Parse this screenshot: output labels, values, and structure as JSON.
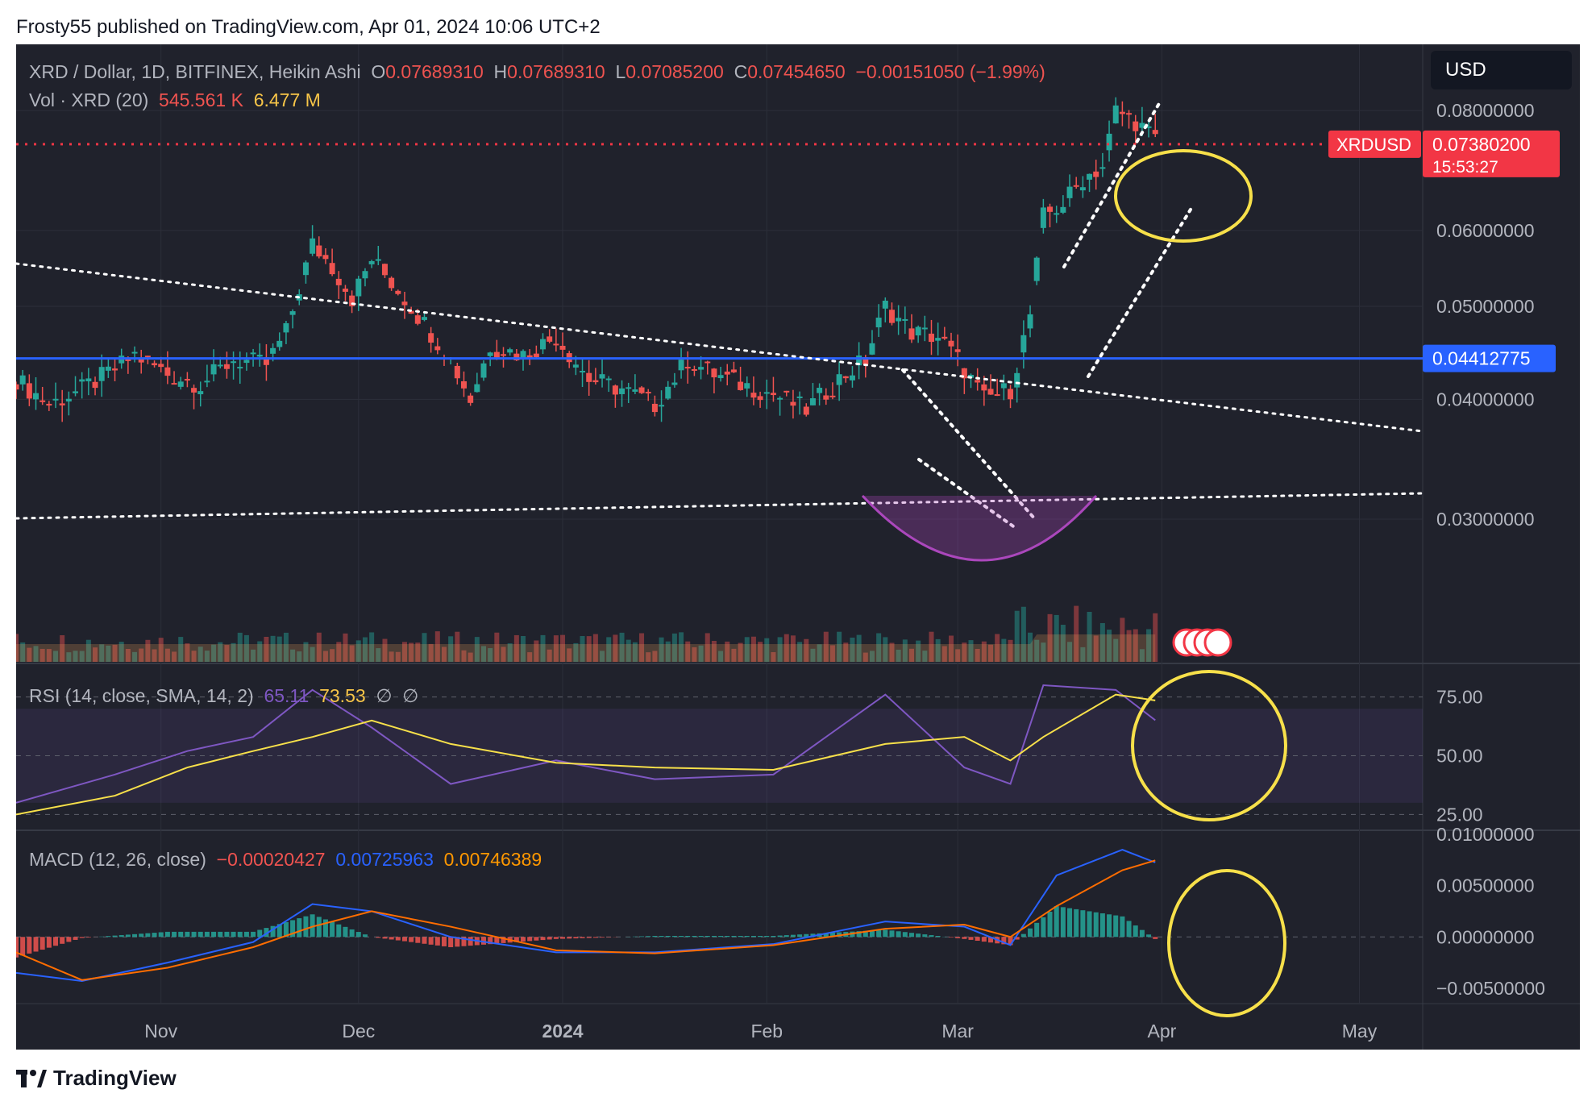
{
  "header": {
    "publish_text": "Frosty55 published on TradingView.com, Apr 01, 2024 10:06 UTC+2"
  },
  "footer": {
    "brand": "TradingView",
    "logo_icon": "tradingview-logo-icon"
  },
  "toolbar": {
    "currency": "USD"
  },
  "legend": {
    "symbol": "XRD / Dollar, 1D, BITFINEX, Heikin Ashi",
    "o_label": "O",
    "o_value": "0.07689310",
    "h_label": "H",
    "h_value": "0.07689310",
    "l_label": "L",
    "l_value": "0.07085200",
    "c_label": "C",
    "c_value": "0.07454650",
    "change": "−0.00151050 (−1.99%)",
    "vol_label": "Vol · XRD (20)",
    "vol_value": "545.561 K",
    "vol_ma": "6.477 M",
    "rsi_label": "RSI (14, close, SMA, 14, 2)",
    "rsi_value": "65.11",
    "rsi_ma": "73.53",
    "rsi_extra1": "∅",
    "rsi_extra2": "∅",
    "macd_label": "MACD (12, 26, close)",
    "macd_hist": "−0.00020427",
    "macd_line": "0.00725963",
    "macd_signal": "0.00746389"
  },
  "price_badges": {
    "symbol_tag": "XRDUSD",
    "last_price": "0.07380200",
    "countdown": "15:53:27",
    "level_price": "0.04412775"
  },
  "colors": {
    "background": "#20222c",
    "up": "#26a69a",
    "down": "#ef5350",
    "level_line": "#2962ff",
    "price_line": "#f23645",
    "rsi": "#7e57c2",
    "rsi_ma": "#f7e04a",
    "macd": "#2962ff",
    "signal": "#ff6d00",
    "annotation": "#f7e04a",
    "cup": "#ab47bc"
  },
  "chart_data": [
    {
      "type": "candlestick",
      "panel": "price",
      "style": "Heikin Ashi",
      "x_ticks": [
        "Nov",
        "Dec",
        "2024",
        "Feb",
        "Mar",
        "Apr",
        "May"
      ],
      "y_ticks": [
        "0.08000000",
        "0.06000000",
        "0.05000000",
        "0.04000000",
        "0.03000000"
      ],
      "y_tick_values": [
        0.08,
        0.06,
        0.05,
        0.04,
        0.03
      ],
      "ylim": [
        0.0213,
        0.0885
      ],
      "log_scale": true,
      "x_range": [
        "2023-10-10",
        "2024-05-10"
      ],
      "series": [
        {
          "x": "2023-10-10",
          "close": 0.042
        },
        {
          "x": "2023-10-15",
          "close": 0.0395
        },
        {
          "x": "2023-10-20",
          "close": 0.041
        },
        {
          "x": "2023-10-25",
          "close": 0.043
        },
        {
          "x": "2023-10-28",
          "close": 0.0445
        },
        {
          "x": "2023-11-02",
          "close": 0.0425
        },
        {
          "x": "2023-11-07",
          "close": 0.0415
        },
        {
          "x": "2023-11-12",
          "close": 0.044
        },
        {
          "x": "2023-11-17",
          "close": 0.0435
        },
        {
          "x": "2023-11-20",
          "close": 0.047
        },
        {
          "x": "2023-11-24",
          "close": 0.058
        },
        {
          "x": "2023-11-27",
          "close": 0.055
        },
        {
          "x": "2023-11-30",
          "close": 0.051
        },
        {
          "x": "2023-12-03",
          "close": 0.056
        },
        {
          "x": "2023-12-07",
          "close": 0.052
        },
        {
          "x": "2023-12-11",
          "close": 0.048
        },
        {
          "x": "2023-12-15",
          "close": 0.044
        },
        {
          "x": "2023-12-18",
          "close": 0.04
        },
        {
          "x": "2023-12-21",
          "close": 0.0455
        },
        {
          "x": "2023-12-26",
          "close": 0.0445
        },
        {
          "x": "2023-12-31",
          "close": 0.0465
        },
        {
          "x": "2024-01-05",
          "close": 0.042
        },
        {
          "x": "2024-01-10",
          "close": 0.041
        },
        {
          "x": "2024-01-15",
          "close": 0.0395
        },
        {
          "x": "2024-01-20",
          "close": 0.044
        },
        {
          "x": "2024-01-24",
          "close": 0.0425
        },
        {
          "x": "2024-01-28",
          "close": 0.0415
        },
        {
          "x": "2024-02-02",
          "close": 0.0405
        },
        {
          "x": "2024-02-07",
          "close": 0.039
        },
        {
          "x": "2024-02-12",
          "close": 0.042
        },
        {
          "x": "2024-02-16",
          "close": 0.044
        },
        {
          "x": "2024-02-19",
          "close": 0.05
        },
        {
          "x": "2024-02-23",
          "close": 0.047
        },
        {
          "x": "2024-02-27",
          "close": 0.0465
        },
        {
          "x": "2024-03-01",
          "close": 0.044
        },
        {
          "x": "2024-03-05",
          "close": 0.04
        },
        {
          "x": "2024-03-09",
          "close": 0.041
        },
        {
          "x": "2024-03-12",
          "close": 0.049
        },
        {
          "x": "2024-03-14",
          "close": 0.062
        },
        {
          "x": "2024-03-17",
          "close": 0.064
        },
        {
          "x": "2024-03-20",
          "close": 0.068
        },
        {
          "x": "2024-03-23",
          "close": 0.07
        },
        {
          "x": "2024-03-25",
          "close": 0.08
        },
        {
          "x": "2024-03-28",
          "close": 0.078
        },
        {
          "x": "2024-03-31",
          "close": 0.0745
        }
      ],
      "horizontal_levels": [
        0.04412775,
        0.073802
      ],
      "last_price": 0.073802
    },
    {
      "type": "bar",
      "panel": "volume",
      "series_name": "Vol · XRD (20)"
    },
    {
      "type": "line",
      "panel": "rsi",
      "y_ticks": [
        "75.00",
        "50.00",
        "25.00"
      ],
      "y_tick_values": [
        75,
        50,
        25
      ],
      "ylim": [
        20,
        80
      ],
      "band": [
        30,
        70
      ],
      "series": [
        {
          "x": "2023-10-10",
          "rsi": 30,
          "ma": 25
        },
        {
          "x": "2023-10-25",
          "rsi": 42,
          "ma": 33
        },
        {
          "x": "2023-11-05",
          "rsi": 52,
          "ma": 45
        },
        {
          "x": "2023-11-15",
          "rsi": 58,
          "ma": 52
        },
        {
          "x": "2023-11-24",
          "rsi": 78,
          "ma": 58
        },
        {
          "x": "2023-12-03",
          "rsi": 62,
          "ma": 65
        },
        {
          "x": "2023-12-15",
          "rsi": 38,
          "ma": 55
        },
        {
          "x": "2023-12-31",
          "rsi": 48,
          "ma": 47
        },
        {
          "x": "2024-01-15",
          "rsi": 40,
          "ma": 45
        },
        {
          "x": "2024-02-02",
          "rsi": 42,
          "ma": 44
        },
        {
          "x": "2024-02-19",
          "rsi": 76,
          "ma": 55
        },
        {
          "x": "2024-03-02",
          "rsi": 45,
          "ma": 58
        },
        {
          "x": "2024-03-09",
          "rsi": 38,
          "ma": 48
        },
        {
          "x": "2024-03-14",
          "rsi": 80,
          "ma": 58
        },
        {
          "x": "2024-03-25",
          "rsi": 78,
          "ma": 76
        },
        {
          "x": "2024-03-31",
          "rsi": 65.11,
          "ma": 73.53
        }
      ]
    },
    {
      "type": "line",
      "panel": "macd",
      "y_ticks": [
        "0.01000000",
        "0.00500000",
        "0.00000000",
        "−0.00500000"
      ],
      "y_tick_values": [
        0.01,
        0.005,
        0,
        -0.005
      ],
      "ylim": [
        -0.0065,
        0.01
      ],
      "series": [
        {
          "x": "2023-10-10",
          "macd": -0.0035,
          "signal": -0.0015
        },
        {
          "x": "2023-10-20",
          "macd": -0.0043,
          "signal": -0.0042
        },
        {
          "x": "2023-11-02",
          "macd": -0.0025,
          "signal": -0.003
        },
        {
          "x": "2023-11-15",
          "macd": -0.0005,
          "signal": -0.001
        },
        {
          "x": "2023-11-24",
          "macd": 0.0032,
          "signal": 0.001
        },
        {
          "x": "2023-12-03",
          "macd": 0.0025,
          "signal": 0.0025
        },
        {
          "x": "2023-12-15",
          "macd": 0.0,
          "signal": 0.001
        },
        {
          "x": "2023-12-31",
          "macd": -0.0015,
          "signal": -0.0013
        },
        {
          "x": "2024-01-15",
          "macd": -0.0015,
          "signal": -0.0016
        },
        {
          "x": "2024-02-02",
          "macd": -0.0007,
          "signal": -0.0008
        },
        {
          "x": "2024-02-19",
          "macd": 0.0015,
          "signal": 0.0008
        },
        {
          "x": "2024-03-02",
          "macd": 0.001,
          "signal": 0.0012
        },
        {
          "x": "2024-03-09",
          "macd": -0.0008,
          "signal": 0.0
        },
        {
          "x": "2024-03-16",
          "macd": 0.006,
          "signal": 0.003
        },
        {
          "x": "2024-03-26",
          "macd": 0.0085,
          "signal": 0.0065
        },
        {
          "x": "2024-03-31",
          "macd": 0.00725963,
          "signal": 0.00746389
        }
      ]
    }
  ]
}
